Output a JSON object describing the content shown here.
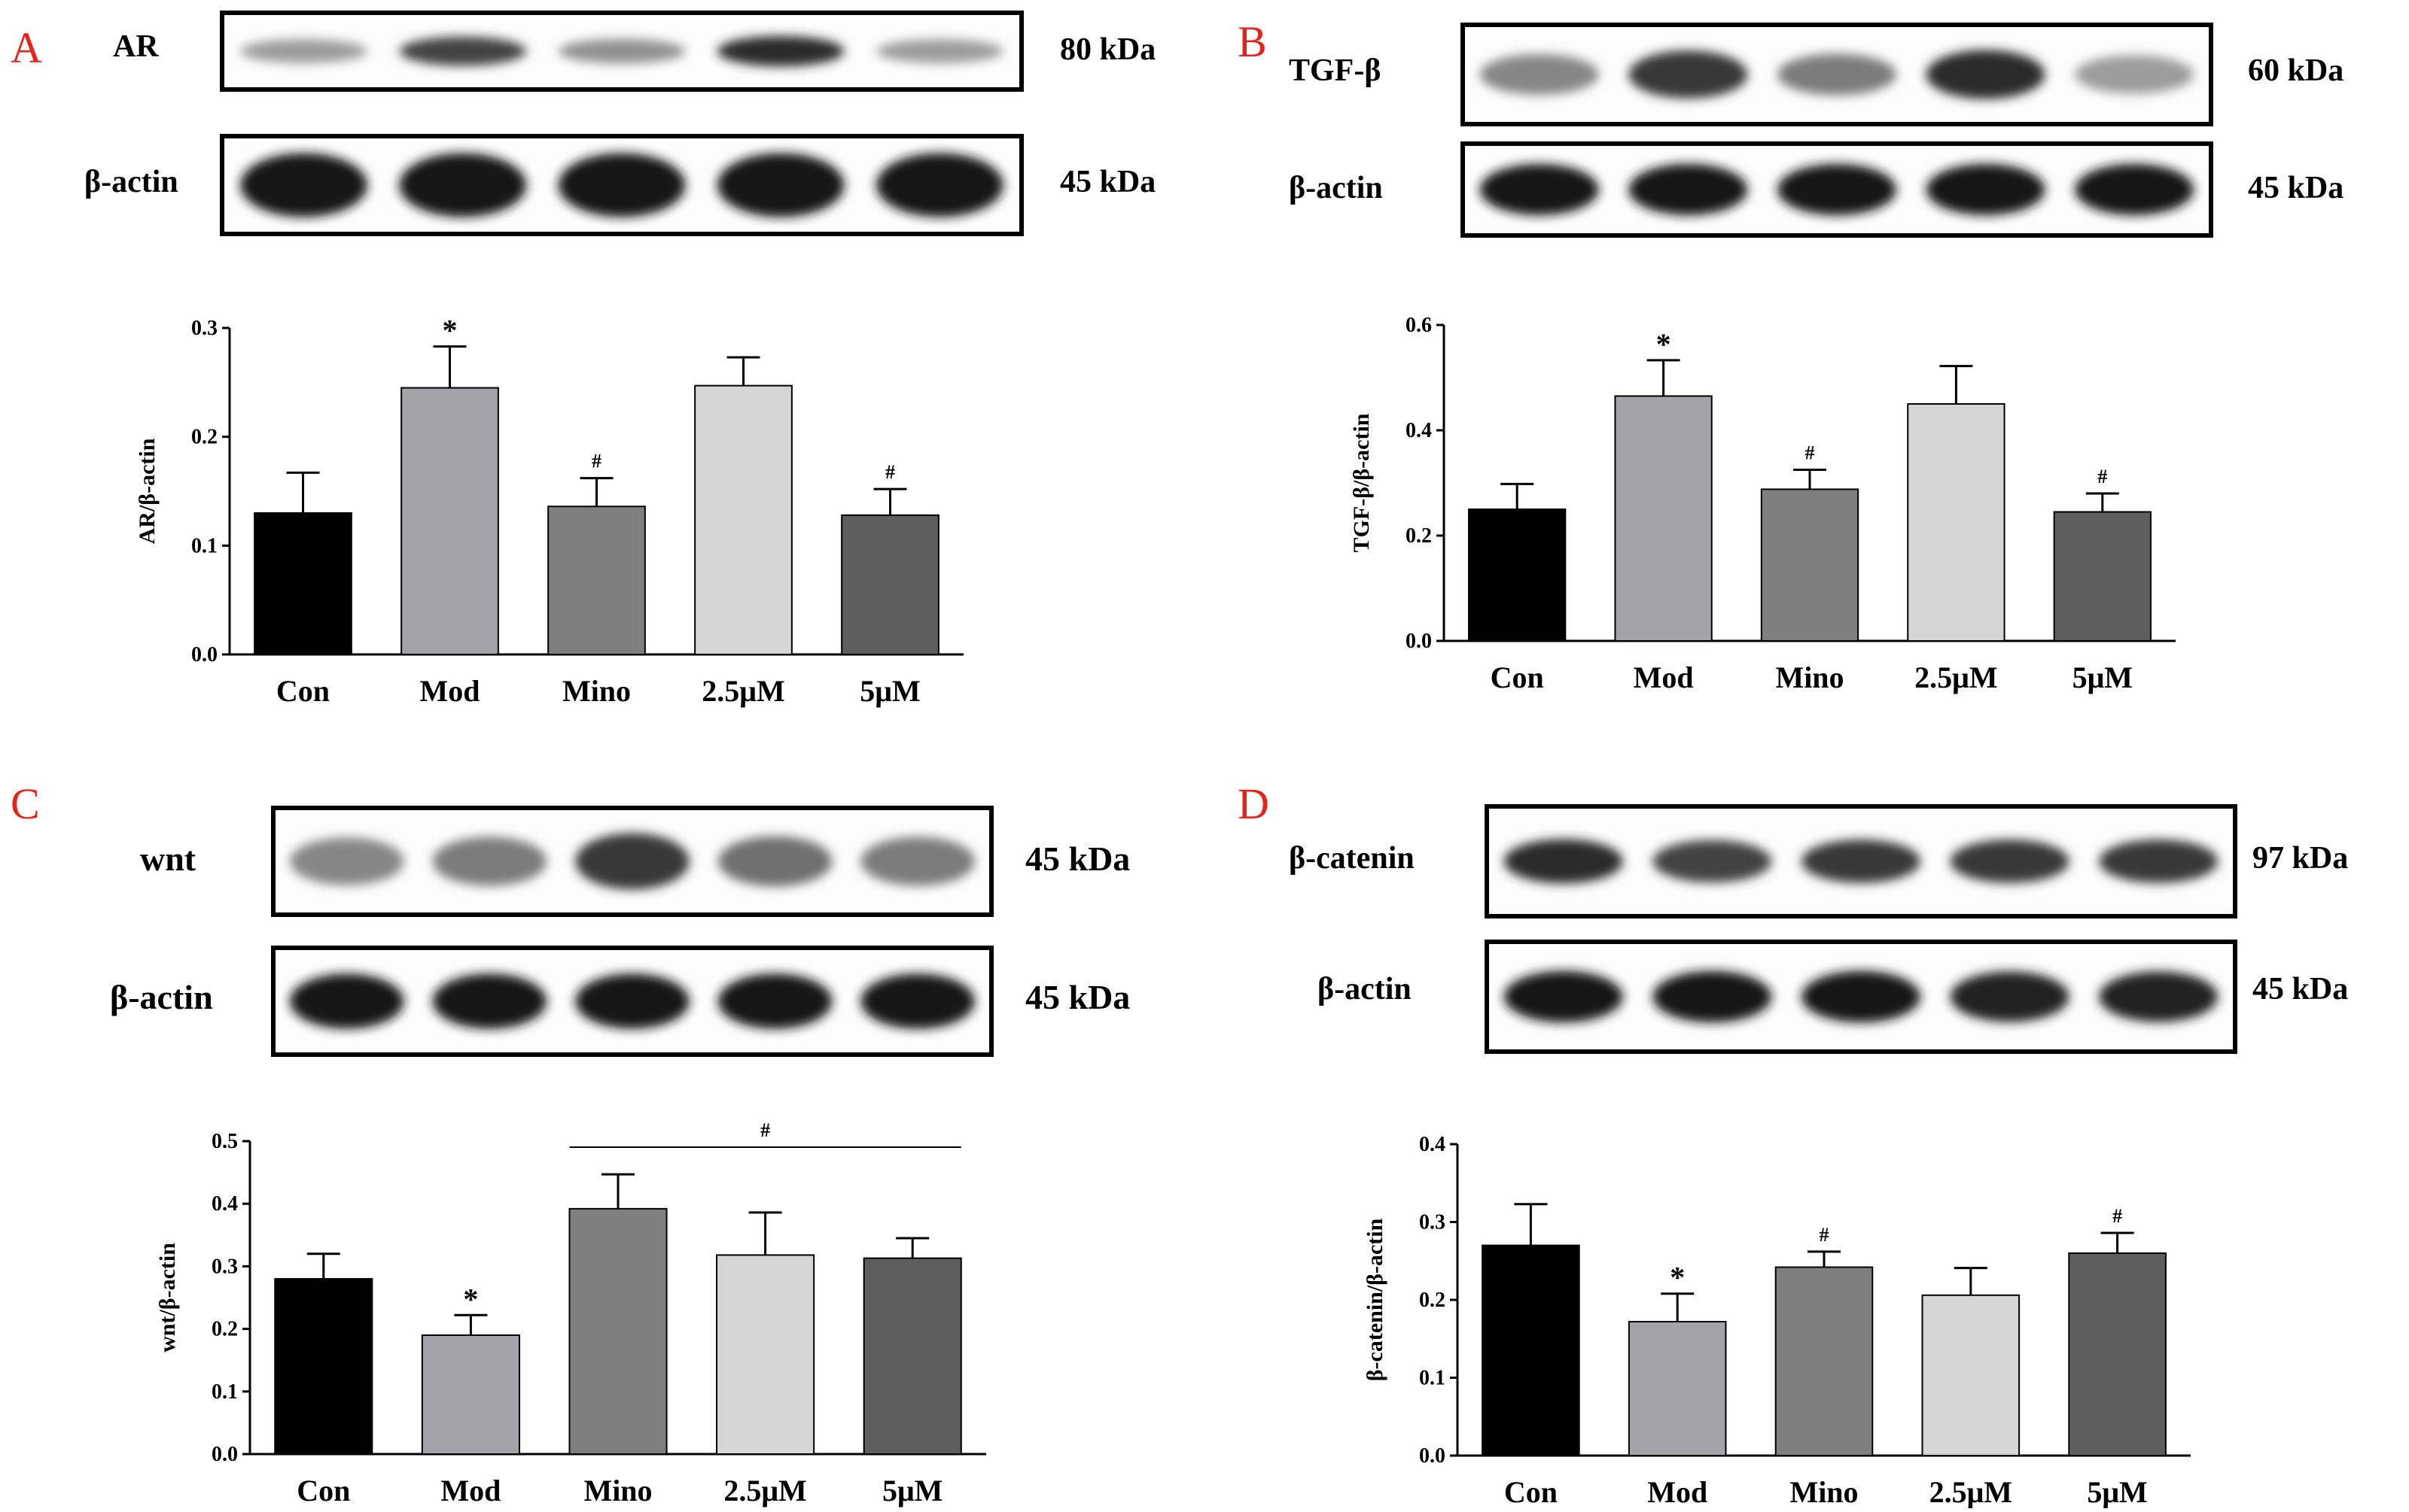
{
  "panels": [
    {
      "letter": "A",
      "blots": [
        {
          "label": "AR",
          "kda": "80 kDa",
          "intensity": [
            0.35,
            0.75,
            0.4,
            0.85,
            0.35
          ],
          "thickness": 0.45
        },
        {
          "label": "β-actin",
          "kda": "45 kDa",
          "intensity": [
            0.95,
            0.95,
            0.95,
            0.95,
            0.95
          ],
          "thickness": 0.7
        }
      ]
    },
    {
      "letter": "B",
      "blots": [
        {
          "label": "TGF-β",
          "kda": "60 kDa",
          "intensity": [
            0.45,
            0.8,
            0.5,
            0.85,
            0.35
          ],
          "thickness": 0.55
        },
        {
          "label": "β-actin",
          "kda": "45 kDa",
          "intensity": [
            0.95,
            0.95,
            0.95,
            0.95,
            0.95
          ],
          "thickness": 0.6
        }
      ]
    },
    {
      "letter": "C",
      "blots": [
        {
          "label": "wnt",
          "kda": "45 kDa",
          "intensity": [
            0.45,
            0.5,
            0.8,
            0.55,
            0.5
          ],
          "thickness": 0.6
        },
        {
          "label": "β-actin",
          "kda": "45 kDa",
          "intensity": [
            0.95,
            0.95,
            0.95,
            0.95,
            0.95
          ],
          "thickness": 0.55
        }
      ]
    },
    {
      "letter": "D",
      "blots": [
        {
          "label": "β-catenin",
          "kda": "97 kDa",
          "intensity": [
            0.85,
            0.75,
            0.8,
            0.8,
            0.8
          ],
          "thickness": 0.45
        },
        {
          "label": "β-actin",
          "kda": "45 kDa",
          "intensity": [
            0.95,
            0.95,
            0.95,
            0.9,
            0.9
          ],
          "thickness": 0.5
        }
      ]
    }
  ],
  "bar_colors": [
    "#000000",
    "#a3a3aa",
    "#7f7f7f",
    "#d6d6d6",
    "#5e5e5e"
  ],
  "chart_data": [
    {
      "type": "bar",
      "categories": [
        "Con",
        "Mod",
        "Mino",
        "2.5μM",
        "5μM"
      ],
      "values": [
        0.13,
        0.245,
        0.136,
        0.247,
        0.128
      ],
      "errors": [
        0.037,
        0.038,
        0.026,
        0.026,
        0.024
      ],
      "annotations": [
        "",
        "*",
        "#",
        "",
        "#"
      ],
      "ylabel": "AR/β-actin",
      "ylim": [
        0,
        0.3
      ],
      "yticks": [
        "0.0",
        "0.1",
        "0.2",
        "0.3"
      ],
      "ytick_values": [
        0,
        0.1,
        0.2,
        0.3
      ]
    },
    {
      "type": "bar",
      "categories": [
        "Con",
        "Mod",
        "Mino",
        "2.5μM",
        "5μM"
      ],
      "values": [
        0.25,
        0.465,
        0.288,
        0.45,
        0.245
      ],
      "errors": [
        0.048,
        0.068,
        0.037,
        0.072,
        0.035
      ],
      "annotations": [
        "",
        "*",
        "#",
        "",
        "#"
      ],
      "ylabel": "TGF-β/β-actin",
      "ylim": [
        0,
        0.6
      ],
      "yticks": [
        "0.0",
        "0.2",
        "0.4",
        "0.6"
      ],
      "ytick_values": [
        0,
        0.2,
        0.4,
        0.6
      ]
    },
    {
      "type": "bar",
      "categories": [
        "Con",
        "Mod",
        "Mino",
        "2.5μM",
        "5μM"
      ],
      "values": [
        0.28,
        0.19,
        0.392,
        0.318,
        0.313
      ],
      "errors": [
        0.04,
        0.032,
        0.055,
        0.068,
        0.032
      ],
      "annotations": [
        "",
        "*",
        "",
        "",
        ""
      ],
      "bracket": {
        "from": 2,
        "to": 4,
        "label": "#"
      },
      "ylabel": "wnt/β-actin",
      "ylim": [
        0,
        0.5
      ],
      "yticks": [
        "0.0",
        "0.1",
        "0.2",
        "0.3",
        "0.4",
        "0.5"
      ],
      "ytick_values": [
        0,
        0.1,
        0.2,
        0.3,
        0.4,
        0.5
      ]
    },
    {
      "type": "bar",
      "categories": [
        "Con",
        "Mod",
        "Mino",
        "2.5μM",
        "5μM"
      ],
      "values": [
        0.27,
        0.172,
        0.242,
        0.206,
        0.26
      ],
      "errors": [
        0.053,
        0.036,
        0.02,
        0.035,
        0.026
      ],
      "annotations": [
        "",
        "*",
        "#",
        "",
        "#"
      ],
      "ylabel": "β-catenin/β-actin",
      "ylim": [
        0,
        0.4
      ],
      "yticks": [
        "0.0",
        "0.1",
        "0.2",
        "0.3",
        "0.4"
      ],
      "ytick_values": [
        0,
        0.1,
        0.2,
        0.3,
        0.4
      ]
    }
  ]
}
